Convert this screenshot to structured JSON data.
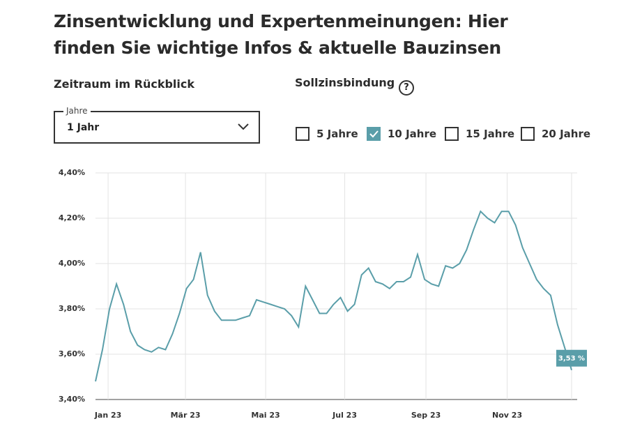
{
  "header": {
    "title_line1": "Zinsentwicklung und Expertenmeinungen: Hier",
    "title_line2": "finden Sie wichtige Infos & aktuelle Bauzinsen"
  },
  "period": {
    "label": "Zeitraum im Rückblick",
    "select_legend": "Jahre",
    "select_value": "1 Jahr"
  },
  "binding": {
    "label": "Sollzinsbindung",
    "help": "?",
    "options": [
      {
        "label": "5 Jahre",
        "checked": false
      },
      {
        "label": "10 Jahre",
        "checked": true
      },
      {
        "label": "15 Jahre",
        "checked": false
      },
      {
        "label": "20 Jahre",
        "checked": false
      }
    ]
  },
  "chart_data": {
    "type": "line",
    "color": "#5a9ea9",
    "grid": true,
    "values": [
      3.48,
      3.62,
      3.8,
      3.91,
      3.82,
      3.7,
      3.64,
      3.62,
      3.61,
      3.63,
      3.62,
      3.69,
      3.78,
      3.89,
      3.93,
      4.05,
      3.86,
      3.79,
      3.75,
      3.75,
      3.75,
      3.76,
      3.77,
      3.84,
      3.83,
      3.82,
      3.81,
      3.8,
      3.77,
      3.72,
      3.9,
      3.84,
      3.78,
      3.78,
      3.82,
      3.85,
      3.79,
      3.82,
      3.95,
      3.98,
      3.92,
      3.91,
      3.89,
      3.92,
      3.92,
      3.94,
      4.04,
      3.93,
      3.91,
      3.9,
      3.99,
      3.98,
      4.0,
      4.06,
      4.15,
      4.23,
      4.2,
      4.18,
      4.23,
      4.23,
      4.17,
      4.07,
      4.0,
      3.93,
      3.89,
      3.86,
      3.73,
      3.63,
      3.53
    ],
    "last_label": {
      "value": 3.53,
      "label": "3,53 %"
    },
    "xlim": [
      0,
      68
    ],
    "xticks": [
      {
        "value": 1.8,
        "label": "Jan 23"
      },
      {
        "value": 12.85,
        "label": "Mär 23"
      },
      {
        "value": 24.3,
        "label": "Mai 23"
      },
      {
        "value": 35.6,
        "label": "Jul 23"
      },
      {
        "value": 47.2,
        "label": "Sep 23"
      },
      {
        "value": 58.8,
        "label": "Nov 23"
      }
    ],
    "ylim": [
      3.4,
      4.4
    ],
    "yticks": [
      {
        "value": 3.4,
        "label": "3,40%"
      },
      {
        "value": 3.6,
        "label": "3,60%"
      },
      {
        "value": 3.8,
        "label": "3,80%"
      },
      {
        "value": 4.0,
        "label": "4,00%"
      },
      {
        "value": 4.2,
        "label": "4,20%"
      },
      {
        "value": 4.4,
        "label": "4,40%"
      }
    ]
  }
}
